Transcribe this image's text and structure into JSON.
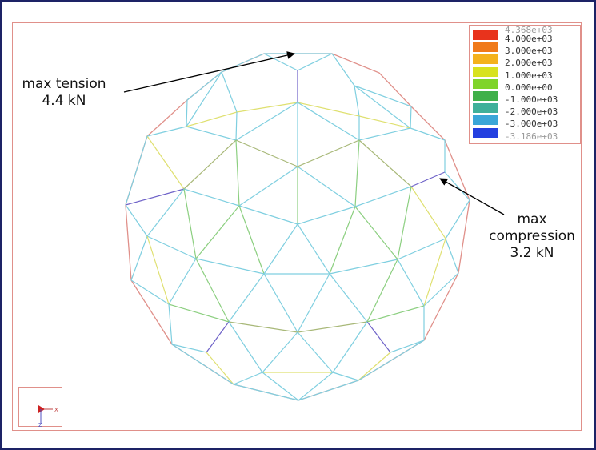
{
  "annotations": {
    "tension": {
      "line1": "max tension",
      "line2": "4.4 kN"
    },
    "compression": {
      "line1": "max",
      "line2": "compression",
      "line3": "3.2 kN"
    }
  },
  "legend": {
    "top_label": "4.368e+03",
    "bottom_label": "-3.186e+03",
    "entries": [
      {
        "label": "4.000e+03",
        "color": "#e8331c"
      },
      {
        "label": "3.000e+03",
        "color": "#f07a1a"
      },
      {
        "label": "2.000e+03",
        "color": "#f4b21d"
      },
      {
        "label": "1.000e+03",
        "color": "#d8e21f"
      },
      {
        "label": "0.000e+00",
        "color": "#7fd42a"
      },
      {
        "label": "-1.000e+03",
        "color": "#3fb04a"
      },
      {
        "label": "-2.000e+03",
        "color": "#3fb09a"
      },
      {
        "label": "-3.000e+03",
        "color": "#3aa6d8"
      },
      {
        "label": "",
        "color": "#2440e0"
      }
    ]
  },
  "triad": {
    "x_label": "X",
    "z_label": "Z"
  },
  "colors": {
    "frame": "#1d2366",
    "outline": "#e0908a",
    "member_cyan": "#7fcfe0",
    "member_yellow": "#dfe070",
    "member_green": "#8ccf80",
    "member_olive": "#a8b878",
    "member_purple": "#6e62c8"
  }
}
